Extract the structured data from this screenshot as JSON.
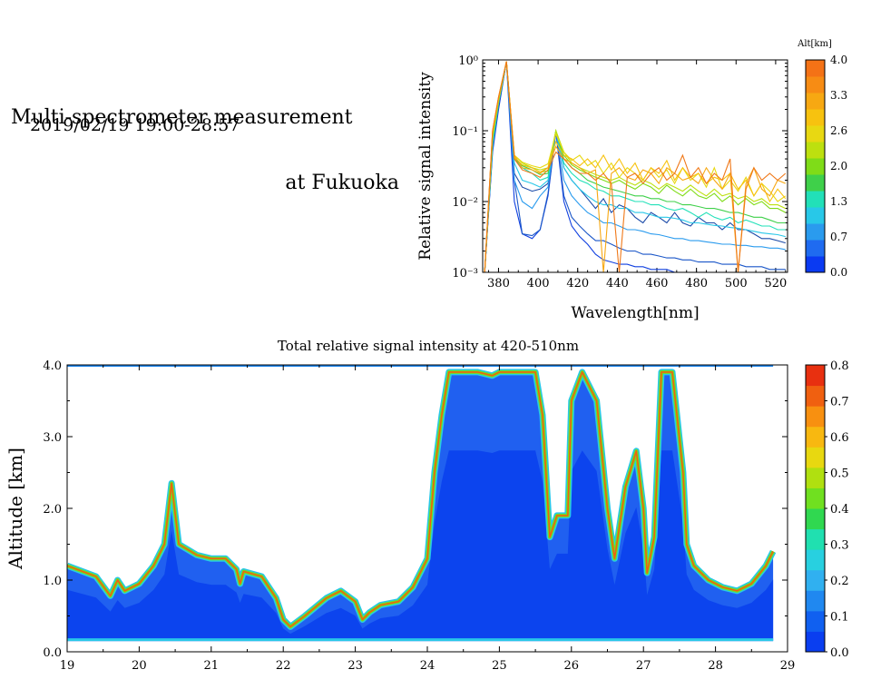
{
  "header": {
    "title_line1": "Multi-spectrometer measurement",
    "title_line2": "at Fukuoka",
    "date_range": "2019/02/19 19:00-28:57"
  },
  "chart_data": [
    {
      "type": "line",
      "title": "",
      "xlabel": "Wavelength[nm]",
      "ylabel": "Relative signal intensity",
      "yscale": "log",
      "xlim": [
        372,
        526
      ],
      "ylim": [
        0.001,
        1
      ],
      "x_ticks": [
        "380",
        "400",
        "420",
        "440",
        "460",
        "480",
        "500",
        "520"
      ],
      "y_ticks": [
        "10⁻³",
        "10⁻²",
        "10⁻¹",
        "10⁰"
      ],
      "x": [
        373,
        377,
        380,
        384,
        388,
        392,
        397,
        401,
        405,
        409,
        413,
        417,
        421,
        425,
        429,
        433,
        437,
        441,
        445,
        449,
        453,
        457,
        461,
        465,
        469,
        473,
        477,
        481,
        485,
        489,
        493,
        497,
        501,
        505,
        509,
        513,
        517,
        521,
        525
      ],
      "colorbar": {
        "title": "Alt[km]",
        "ticks": [
          "0.0",
          "0.7",
          "1.3",
          "2.0",
          "2.6",
          "3.3",
          "4.0"
        ],
        "colors": [
          "#0a3af2",
          "#1f6bf0",
          "#2a9bee",
          "#28c8e8",
          "#22e0b8",
          "#3fd04a",
          "#7fdc18",
          "#bde00f",
          "#e8d812",
          "#f7c20f",
          "#f7a812",
          "#f78c14",
          "#f47216"
        ]
      },
      "series": [
        {
          "name": "0.0",
          "color": "#1040e0",
          "values": [
            0.001,
            0.05,
            0.2,
            0.95,
            0.01,
            0.0035,
            0.003,
            0.004,
            0.012,
            0.095,
            0.01,
            0.0045,
            0.0032,
            0.0025,
            0.0018,
            0.0015,
            0.0014,
            0.0013,
            0.0013,
            0.0012,
            0.0012,
            0.0011,
            0.0011,
            0.0011,
            0.001,
            0.001,
            0.001,
            0.001,
            0.001,
            0.001,
            0.001,
            0.001,
            0.001,
            0.001,
            0.001,
            0.001,
            0.001,
            0.001,
            0.001
          ]
        },
        {
          "name": "0.3",
          "color": "#1a56c8",
          "values": [
            0.001,
            0.055,
            0.22,
            0.95,
            0.02,
            0.0035,
            0.0033,
            0.004,
            0.013,
            0.1,
            0.012,
            0.006,
            0.0045,
            0.0035,
            0.0028,
            0.0028,
            0.0025,
            0.0022,
            0.002,
            0.002,
            0.0018,
            0.0018,
            0.0017,
            0.0016,
            0.0016,
            0.0015,
            0.0015,
            0.0014,
            0.0014,
            0.0014,
            0.0013,
            0.0013,
            0.0013,
            0.0012,
            0.0012,
            0.0012,
            0.0011,
            0.0011,
            0.0011
          ]
        },
        {
          "name": "0.7",
          "color": "#1a4aa8",
          "values": [
            0.001,
            0.06,
            0.23,
            0.95,
            0.025,
            0.016,
            0.014,
            0.015,
            0.018,
            0.1,
            0.03,
            0.02,
            0.015,
            0.011,
            0.008,
            0.011,
            0.007,
            0.009,
            0.008,
            0.006,
            0.005,
            0.007,
            0.006,
            0.005,
            0.007,
            0.005,
            0.0045,
            0.006,
            0.005,
            0.005,
            0.004,
            0.005,
            0.004,
            0.004,
            0.0035,
            0.003,
            0.003,
            0.0028,
            0.0026
          ]
        },
        {
          "name": "1.0",
          "color": "#2a9bee",
          "values": [
            0.001,
            0.06,
            0.24,
            0.95,
            0.02,
            0.01,
            0.008,
            0.012,
            0.016,
            0.1,
            0.02,
            0.012,
            0.009,
            0.007,
            0.006,
            0.005,
            0.005,
            0.0045,
            0.004,
            0.004,
            0.0038,
            0.0035,
            0.0034,
            0.0032,
            0.003,
            0.003,
            0.0028,
            0.0028,
            0.0027,
            0.0026,
            0.0025,
            0.0025,
            0.0024,
            0.0024,
            0.0023,
            0.0023,
            0.0022,
            0.0022,
            0.0021
          ]
        },
        {
          "name": "1.3",
          "color": "#28c8e8",
          "values": [
            0.001,
            0.065,
            0.25,
            0.95,
            0.035,
            0.02,
            0.018,
            0.016,
            0.02,
            0.1,
            0.03,
            0.02,
            0.015,
            0.012,
            0.01,
            0.009,
            0.009,
            0.008,
            0.008,
            0.007,
            0.007,
            0.0065,
            0.006,
            0.006,
            0.0058,
            0.0055,
            0.005,
            0.005,
            0.0048,
            0.0046,
            0.0045,
            0.0043,
            0.0042,
            0.004,
            0.0038,
            0.0036,
            0.0035,
            0.0034,
            0.0032
          ]
        },
        {
          "name": "1.7",
          "color": "#22e0b8",
          "values": [
            0.001,
            0.07,
            0.25,
            0.95,
            0.04,
            0.03,
            0.025,
            0.02,
            0.022,
            0.1,
            0.035,
            0.025,
            0.02,
            0.018,
            0.015,
            0.014,
            0.012,
            0.012,
            0.011,
            0.01,
            0.01,
            0.009,
            0.009,
            0.008,
            0.0075,
            0.008,
            0.007,
            0.006,
            0.007,
            0.006,
            0.0055,
            0.006,
            0.005,
            0.0055,
            0.005,
            0.0045,
            0.0045,
            0.004,
            0.004
          ]
        },
        {
          "name": "2.0",
          "color": "#3fd04a",
          "values": [
            0.001,
            0.075,
            0.26,
            0.95,
            0.04,
            0.032,
            0.028,
            0.024,
            0.025,
            0.1,
            0.04,
            0.03,
            0.025,
            0.02,
            0.018,
            0.016,
            0.015,
            0.014,
            0.013,
            0.012,
            0.012,
            0.011,
            0.011,
            0.01,
            0.01,
            0.009,
            0.009,
            0.0085,
            0.008,
            0.008,
            0.0075,
            0.007,
            0.007,
            0.0065,
            0.006,
            0.006,
            0.0055,
            0.005,
            0.005
          ]
        },
        {
          "name": "2.3",
          "color": "#7fdc18",
          "values": [
            0.001,
            0.08,
            0.26,
            0.95,
            0.042,
            0.033,
            0.03,
            0.026,
            0.027,
            0.1,
            0.045,
            0.033,
            0.028,
            0.025,
            0.022,
            0.02,
            0.018,
            0.02,
            0.017,
            0.015,
            0.018,
            0.016,
            0.013,
            0.017,
            0.014,
            0.012,
            0.015,
            0.012,
            0.011,
            0.013,
            0.01,
            0.012,
            0.009,
            0.011,
            0.009,
            0.01,
            0.008,
            0.008,
            0.007
          ]
        },
        {
          "name": "2.6",
          "color": "#bde00f",
          "values": [
            0.001,
            0.085,
            0.27,
            0.95,
            0.045,
            0.035,
            0.03,
            0.028,
            0.03,
            0.1,
            0.05,
            0.035,
            0.03,
            0.027,
            0.024,
            0.022,
            0.02,
            0.022,
            0.019,
            0.017,
            0.02,
            0.018,
            0.015,
            0.018,
            0.016,
            0.014,
            0.017,
            0.014,
            0.012,
            0.015,
            0.012,
            0.013,
            0.011,
            0.012,
            0.01,
            0.011,
            0.009,
            0.009,
            0.008
          ]
        },
        {
          "name": "3.0",
          "color": "#e8d812",
          "values": [
            0.001,
            0.09,
            0.28,
            0.95,
            0.045,
            0.036,
            0.032,
            0.03,
            0.034,
            0.09,
            0.05,
            0.038,
            0.045,
            0.032,
            0.038,
            0.025,
            0.035,
            0.022,
            0.03,
            0.025,
            0.02,
            0.03,
            0.022,
            0.028,
            0.018,
            0.03,
            0.02,
            0.025,
            0.016,
            0.03,
            0.015,
            0.02,
            0.014,
            0.022,
            0.012,
            0.018,
            0.014,
            0.01,
            0.012
          ]
        },
        {
          "name": "3.3",
          "color": "#f7c20f",
          "values": [
            0.001,
            0.095,
            0.28,
            0.95,
            0.042,
            0.033,
            0.03,
            0.026,
            0.03,
            0.07,
            0.045,
            0.04,
            0.032,
            0.04,
            0.03,
            0.045,
            0.028,
            0.04,
            0.025,
            0.035,
            0.02,
            0.03,
            0.025,
            0.038,
            0.02,
            0.03,
            0.022,
            0.025,
            0.018,
            0.022,
            0.02,
            0.025,
            0.015,
            0.02,
            0.012,
            0.018,
            0.01,
            0.015,
            0.011
          ]
        },
        {
          "name": "3.7",
          "color": "#f7a812",
          "values": [
            0.001,
            0.1,
            0.3,
            0.95,
            0.045,
            0.03,
            0.028,
            0.025,
            0.03,
            0.06,
            0.04,
            0.035,
            0.03,
            0.025,
            0.028,
            0.001,
            0.025,
            0.03,
            0.022,
            0.02,
            0.028,
            0.025,
            0.018,
            0.03,
            0.025,
            0.02,
            0.022,
            0.018,
            0.03,
            0.02,
            0.015,
            0.025,
            0.001,
            0.018,
            0.03,
            0.015,
            0.012,
            0.02,
            0.018
          ]
        },
        {
          "name": "4.0",
          "color": "#f07818",
          "values": [
            0.001,
            0.1,
            0.3,
            0.95,
            0.04,
            0.028,
            0.025,
            0.022,
            0.028,
            0.05,
            0.04,
            0.03,
            0.025,
            0.025,
            0.02,
            0.025,
            0.018,
            0.001,
            0.022,
            0.025,
            0.018,
            0.025,
            0.03,
            0.02,
            0.025,
            0.045,
            0.022,
            0.03,
            0.018,
            0.025,
            0.02,
            0.04,
            0.001,
            0.015,
            0.03,
            0.02,
            0.025,
            0.02,
            0.025
          ]
        }
      ]
    },
    {
      "type": "heatmap",
      "title": "Total relative signal intensity at 420-510nm",
      "xlabel": "",
      "ylabel": "Altitude [km]",
      "xlim": [
        19,
        29
      ],
      "ylim": [
        0,
        4
      ],
      "x_ticks": [
        "19",
        "20",
        "21",
        "22",
        "23",
        "24",
        "25",
        "26",
        "27",
        "28",
        "29"
      ],
      "y_ticks": [
        "0.0",
        "1.0",
        "2.0",
        "3.0",
        "4.0"
      ],
      "colorbar": {
        "ticks": [
          "0.0",
          "0.1",
          "0.2",
          "0.3",
          "0.4",
          "0.5",
          "0.6",
          "0.7",
          "0.8"
        ],
        "range": [
          0,
          0.8
        ],
        "colors": [
          "#0a3ef0",
          "#1060f0",
          "#2088f0",
          "#30b0f0",
          "#28d0e0",
          "#20e0b0",
          "#30d850",
          "#70e020",
          "#b0e010",
          "#e8d810",
          "#f8b810",
          "#f89010",
          "#f06010",
          "#e83010"
        ]
      },
      "data_range_x": [
        19.0,
        28.8
      ],
      "data_range_y": [
        0.15,
        4.0
      ],
      "layer_top_km": [
        [
          19.0,
          1.2
        ],
        [
          19.4,
          1.05
        ],
        [
          19.6,
          0.78
        ],
        [
          19.7,
          1.0
        ],
        [
          19.8,
          0.85
        ],
        [
          20.0,
          0.95
        ],
        [
          20.2,
          1.2
        ],
        [
          20.35,
          1.5
        ],
        [
          20.45,
          2.35
        ],
        [
          20.55,
          1.5
        ],
        [
          20.8,
          1.35
        ],
        [
          21.0,
          1.3
        ],
        [
          21.2,
          1.3
        ],
        [
          21.35,
          1.15
        ],
        [
          21.4,
          0.95
        ],
        [
          21.45,
          1.12
        ],
        [
          21.7,
          1.05
        ],
        [
          21.9,
          0.75
        ],
        [
          22.0,
          0.45
        ],
        [
          22.1,
          0.35
        ],
        [
          22.3,
          0.5
        ],
        [
          22.6,
          0.75
        ],
        [
          22.8,
          0.85
        ],
        [
          23.0,
          0.7
        ],
        [
          23.1,
          0.45
        ],
        [
          23.2,
          0.55
        ],
        [
          23.35,
          0.65
        ],
        [
          23.6,
          0.7
        ],
        [
          23.8,
          0.9
        ],
        [
          24.0,
          1.3
        ],
        [
          24.1,
          2.5
        ],
        [
          24.2,
          3.3
        ],
        [
          24.3,
          3.9
        ],
        [
          24.5,
          3.9
        ],
        [
          24.7,
          3.9
        ],
        [
          24.9,
          3.85
        ],
        [
          25.0,
          3.9
        ],
        [
          25.3,
          3.9
        ],
        [
          25.5,
          3.9
        ],
        [
          25.6,
          3.3
        ],
        [
          25.7,
          1.6
        ],
        [
          25.8,
          1.9
        ],
        [
          25.95,
          1.9
        ],
        [
          26.0,
          3.5
        ],
        [
          26.15,
          3.9
        ],
        [
          26.35,
          3.5
        ],
        [
          26.5,
          2.0
        ],
        [
          26.6,
          1.3
        ],
        [
          26.75,
          2.3
        ],
        [
          26.9,
          2.8
        ],
        [
          27.0,
          2.0
        ],
        [
          27.05,
          1.1
        ],
        [
          27.15,
          1.6
        ],
        [
          27.25,
          3.9
        ],
        [
          27.4,
          3.9
        ],
        [
          27.55,
          2.5
        ],
        [
          27.6,
          1.5
        ],
        [
          27.7,
          1.2
        ],
        [
          27.9,
          1.0
        ],
        [
          28.1,
          0.9
        ],
        [
          28.3,
          0.85
        ],
        [
          28.5,
          0.95
        ],
        [
          28.7,
          1.2
        ],
        [
          28.8,
          1.4
        ]
      ]
    }
  ]
}
